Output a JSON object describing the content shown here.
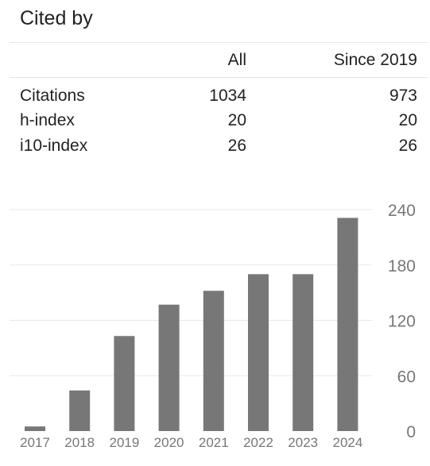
{
  "panel": {
    "title": "Cited by",
    "columns": [
      "All",
      "Since 2019"
    ],
    "rows": [
      {
        "label": "Citations",
        "all": "1034",
        "since": "973"
      },
      {
        "label": "h-index",
        "all": "20",
        "since": "20"
      },
      {
        "label": "i10-index",
        "all": "26",
        "since": "26"
      }
    ]
  },
  "chart_data": {
    "type": "bar",
    "categories": [
      "2017",
      "2018",
      "2019",
      "2020",
      "2021",
      "2022",
      "2023",
      "2024"
    ],
    "values": [
      5,
      44,
      103,
      137,
      152,
      170,
      170,
      231
    ],
    "ylim": [
      0,
      240
    ],
    "yticks": [
      "0",
      "60",
      "120",
      "180",
      "240"
    ],
    "grid": true,
    "bar_color": "#777777",
    "axis_label_color": "#777777"
  }
}
